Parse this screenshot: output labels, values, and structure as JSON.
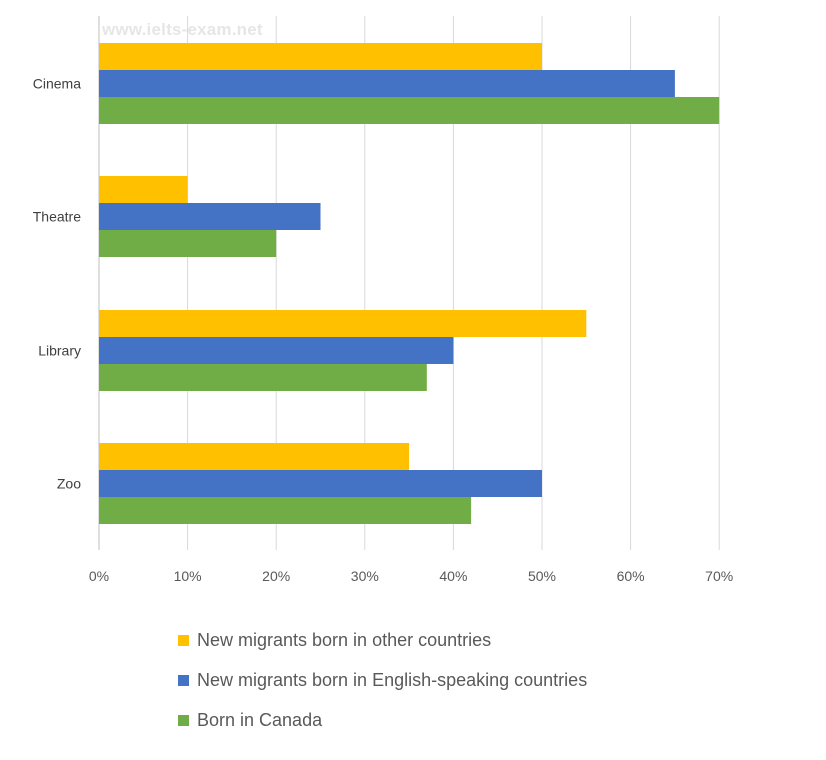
{
  "watermark": "www.ielts-exam.net",
  "chart_data": {
    "type": "bar",
    "orientation": "horizontal",
    "categories": [
      "Cinema",
      "Theatre",
      "Library",
      "Zoo"
    ],
    "series": [
      {
        "name": "New migrants born in other countries",
        "color": "#ffc000",
        "values": [
          50,
          10,
          55,
          35
        ]
      },
      {
        "name": "New migrants born in English-speaking countries",
        "color": "#4472c4",
        "values": [
          65,
          25,
          40,
          50
        ]
      },
      {
        "name": "Born in Canada",
        "color": "#70ad47",
        "values": [
          70,
          20,
          37,
          42
        ]
      }
    ],
    "xticks": [
      "0%",
      "10%",
      "20%",
      "30%",
      "40%",
      "50%",
      "60%",
      "70%"
    ],
    "xlim": [
      0,
      70
    ],
    "grid": "vertical",
    "legend": "bottom"
  }
}
